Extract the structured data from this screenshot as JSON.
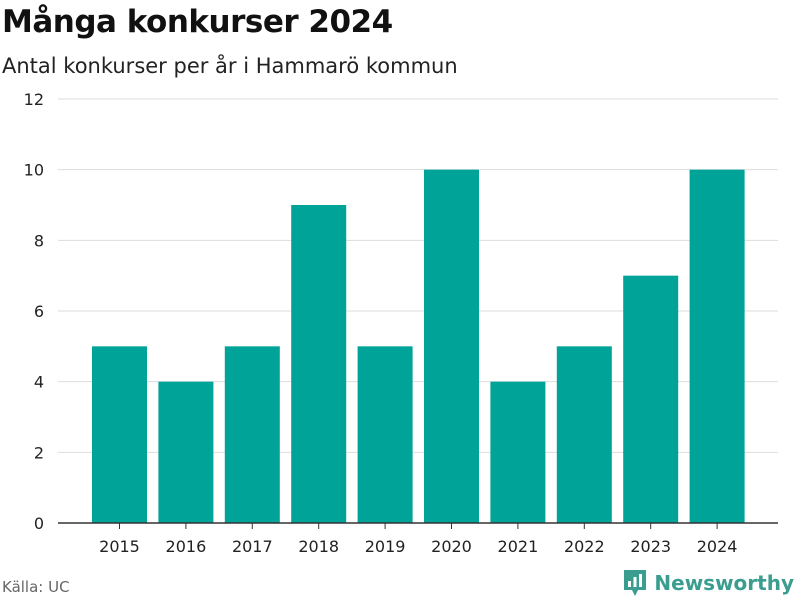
{
  "header": {
    "title": "Många konkurser 2024",
    "subtitle": "Antal konkurser per år i Hammarö kommun"
  },
  "footer": {
    "source": "Källa: UC",
    "brand": "Newsworthy"
  },
  "colors": {
    "bar": "#00a398",
    "grid": "#dddddd",
    "axis": "#333333",
    "brand": "#3a9d8f"
  },
  "chart_data": {
    "type": "bar",
    "categories": [
      "2015",
      "2016",
      "2017",
      "2018",
      "2019",
      "2020",
      "2021",
      "2022",
      "2023",
      "2024"
    ],
    "values": [
      5,
      4,
      5,
      9,
      5,
      10,
      4,
      5,
      7,
      10
    ],
    "title": "Många konkurser 2024",
    "subtitle": "Antal konkurser per år i Hammarö kommun",
    "xlabel": "",
    "ylabel": "",
    "ylim": [
      0,
      12
    ],
    "yticks": [
      0,
      2,
      4,
      6,
      8,
      10,
      12
    ],
    "grid": true,
    "legend": "none"
  }
}
